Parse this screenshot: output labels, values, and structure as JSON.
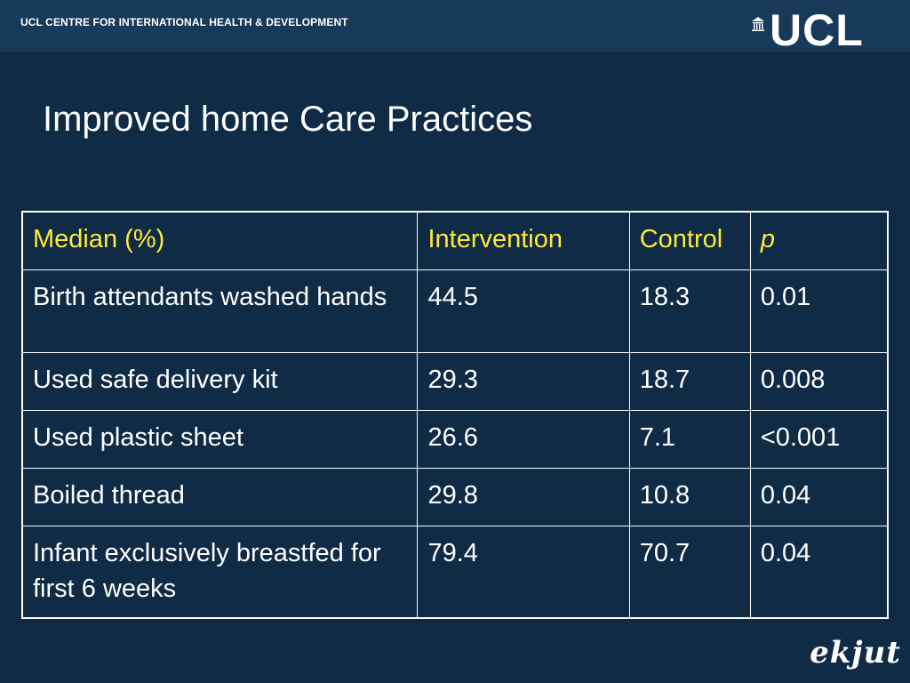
{
  "header": {
    "org_name": "UCL CENTRE FOR INTERNATIONAL HEALTH & DEVELOPMENT",
    "logo_text": "UCL"
  },
  "slide": {
    "title": "Improved home Care Practices"
  },
  "table": {
    "headers": [
      "Median (%)",
      "Intervention",
      "Control",
      "p"
    ],
    "rows": [
      [
        "Birth attendants washed hands",
        "44.5",
        "18.3",
        "0.01"
      ],
      [
        "Used safe delivery kit",
        "29.3",
        "18.7",
        "0.008"
      ],
      [
        "Used plastic sheet",
        "26.6",
        "7.1",
        "<0.001"
      ],
      [
        "Boiled thread",
        "29.8",
        "10.8",
        "0.04"
      ],
      [
        "Infant exclusively breastfed for first 6 weeks",
        "79.4",
        "70.7",
        "0.04"
      ]
    ]
  },
  "footer": {
    "logo_text": "ekjut"
  },
  "colors": {
    "background": "#0f2b45",
    "header_bar": "#173a5a",
    "header_text": "#ffe83c",
    "body_text": "#ffffff"
  }
}
